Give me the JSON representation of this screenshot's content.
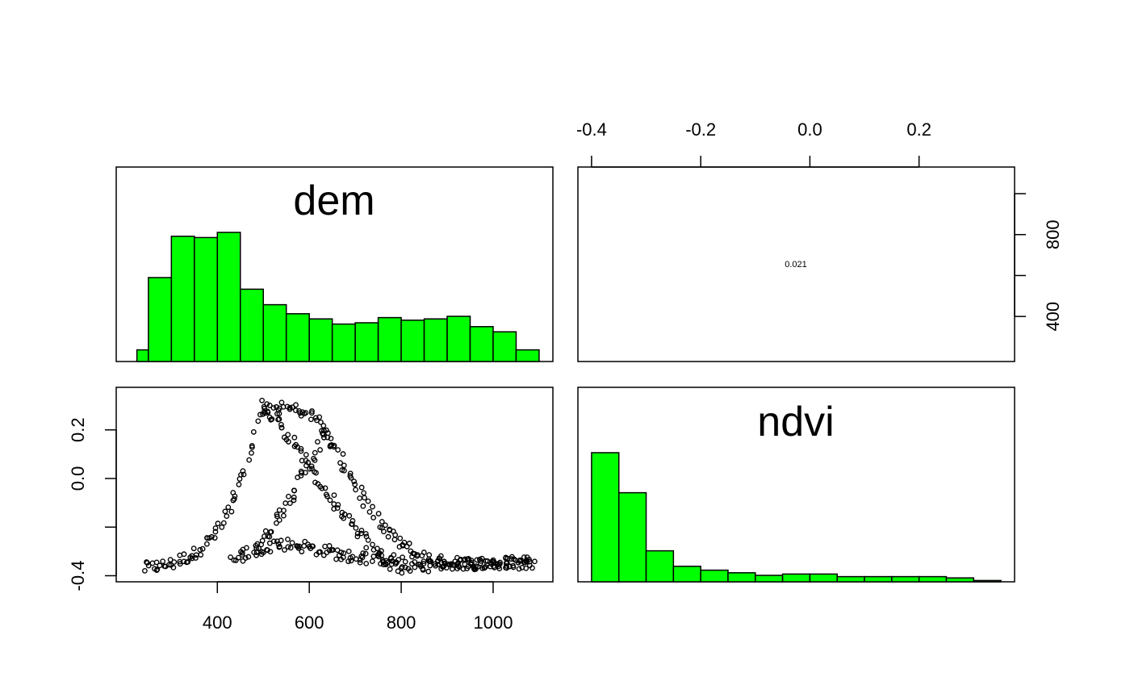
{
  "chart_data": [
    {
      "type": "bar",
      "panel": "top-left",
      "title": "dem",
      "bin_edges": [
        225,
        250,
        300,
        350,
        400,
        450,
        500,
        550,
        600,
        650,
        700,
        750,
        800,
        850,
        900,
        950,
        1000,
        1050,
        1100
      ],
      "values": [
        0.09,
        0.65,
        0.97,
        0.96,
        1.0,
        0.56,
        0.44,
        0.37,
        0.33,
        0.29,
        0.3,
        0.34,
        0.32,
        0.33,
        0.35,
        0.27,
        0.23,
        0.09
      ],
      "xlim": [
        180,
        1130
      ],
      "ylim": [
        0,
        1.0
      ]
    },
    {
      "type": "table",
      "panel": "top-right",
      "correlation": "0.021",
      "x_axis": {
        "position": "top",
        "ticks": [
          -0.4,
          -0.2,
          0.0,
          0.2
        ],
        "tick_labels": [
          "-0.4",
          "-0.2",
          "0.0",
          "0.2"
        ],
        "lim": [
          -0.425,
          0.375
        ]
      },
      "y_axis": {
        "position": "right",
        "ticks": [
          400,
          600,
          800,
          1000
        ],
        "tick_labels": [
          "400",
          "",
          "800",
          ""
        ],
        "lim": [
          180,
          1130
        ]
      }
    },
    {
      "type": "scatter",
      "panel": "bottom-left",
      "x_axis": {
        "ticks": [
          400,
          600,
          800,
          1000
        ],
        "tick_labels": [
          "400",
          "600",
          "800",
          "1000"
        ],
        "lim": [
          180,
          1130
        ]
      },
      "y_axis": {
        "ticks": [
          -0.4,
          -0.2,
          0.0,
          0.2
        ],
        "tick_labels": [
          "-0.4",
          "",
          "0.0",
          "0.2"
        ],
        "lim": [
          -0.425,
          0.375
        ]
      },
      "ridges": [
        {
          "name": "",
          "points": [
            [
              240,
              -0.37
            ],
            [
              300,
              -0.35
            ],
            [
              350,
              -0.31
            ],
            [
              400,
              -0.22
            ],
            [
              440,
              -0.08
            ],
            [
              470,
              0.08
            ],
            [
              495,
              0.3
            ],
            [
              520,
              0.25
            ],
            [
              560,
              0.17
            ],
            [
              600,
              0.05
            ],
            [
              640,
              -0.07
            ],
            [
              680,
              -0.17
            ],
            [
              720,
              -0.25
            ],
            [
              760,
              -0.33
            ],
            [
              800,
              -0.37
            ],
            [
              850,
              -0.36
            ],
            [
              900,
              -0.35
            ],
            [
              1000,
              -0.35
            ],
            [
              1090,
              -0.34
            ]
          ]
        },
        {
          "name": "",
          "points": [
            [
              430,
              -0.34
            ],
            [
              480,
              -0.29
            ],
            [
              510,
              -0.22
            ],
            [
              550,
              -0.1
            ],
            [
              600,
              0.05
            ],
            [
              630,
              0.18
            ],
            [
              660,
              0.1
            ],
            [
              700,
              -0.02
            ],
            [
              740,
              -0.16
            ],
            [
              780,
              -0.24
            ],
            [
              820,
              -0.3
            ],
            [
              870,
              -0.34
            ],
            [
              950,
              -0.35
            ],
            [
              1090,
              -0.35
            ]
          ]
        },
        {
          "name": "",
          "points": [
            [
              480,
              -0.3
            ],
            [
              520,
              -0.27
            ],
            [
              560,
              -0.27
            ],
            [
              620,
              -0.29
            ],
            [
              680,
              -0.32
            ],
            [
              750,
              -0.33
            ],
            [
              800,
              -0.34
            ]
          ]
        },
        {
          "name": "",
          "points": [
            [
              500,
              0.28
            ],
            [
              540,
              0.29
            ],
            [
              580,
              0.28
            ],
            [
              620,
              0.24
            ],
            [
              650,
              0.15
            ]
          ]
        }
      ]
    },
    {
      "type": "bar",
      "panel": "bottom-right",
      "title": "ndvi",
      "bin_edges": [
        -0.4,
        -0.35,
        -0.3,
        -0.25,
        -0.2,
        -0.15,
        -0.1,
        -0.05,
        0.0,
        0.05,
        0.1,
        0.15,
        0.2,
        0.25,
        0.3,
        0.35
      ],
      "values": [
        1.0,
        0.69,
        0.24,
        0.12,
        0.09,
        0.07,
        0.05,
        0.06,
        0.06,
        0.04,
        0.04,
        0.04,
        0.04,
        0.03,
        0.01
      ],
      "xlim": [
        -0.425,
        0.375
      ],
      "ylim": [
        0,
        1.0
      ]
    }
  ]
}
